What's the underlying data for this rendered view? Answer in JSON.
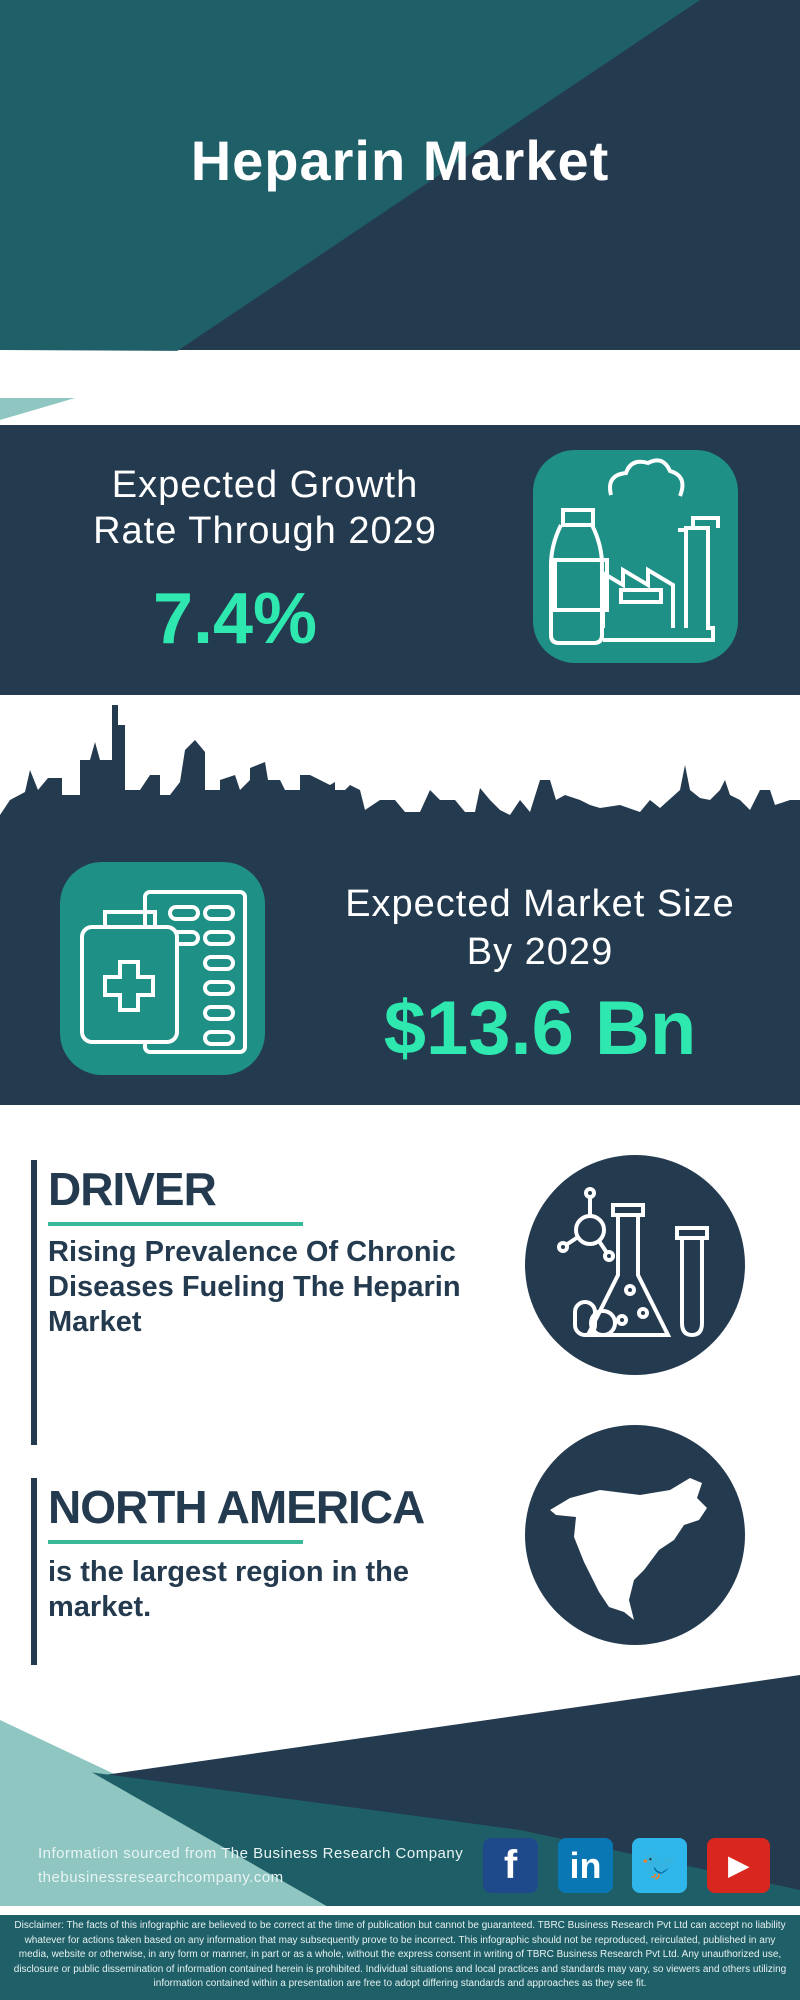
{
  "header": {
    "title": "Heparin Market"
  },
  "growth": {
    "label_line1": "Expected Growth",
    "label_line2": "Rate Through 2029",
    "value": "7.4%",
    "icon": "pharma-factory-icon"
  },
  "market_size": {
    "label_line1": "Expected Market Size",
    "label_line2": "By 2029",
    "value": "$13.6 Bn",
    "icon": "medicine-kit-pills-icon"
  },
  "driver": {
    "heading": "DRIVER",
    "text": "Rising Prevalence Of Chronic Diseases Fueling The Heparin Market",
    "icon": "lab-flask-icon"
  },
  "region": {
    "heading": "NORTH AMERICA",
    "text": "is the largest region in the market.",
    "icon": "north-america-map-icon"
  },
  "footer": {
    "source": "Information sourced from The Business Research Company",
    "website": "thebusinessresearchcompany.com",
    "social": [
      {
        "name": "facebook",
        "glyph": "f",
        "color": "#1e4a8c"
      },
      {
        "name": "linkedin",
        "glyph": "in",
        "color": "#0a77b5"
      },
      {
        "name": "twitter",
        "glyph": "🐦",
        "color": "#2fb7ec"
      },
      {
        "name": "youtube",
        "glyph": "▶",
        "color": "#d9261f"
      }
    ]
  },
  "disclaimer": "Disclaimer: The facts of this infographic are believed to be correct at the time of publication but cannot be guaranteed. TBRC Business Research Pvt Ltd can accept no liability whatever for actions taken based on any information that may subsequently prove to be incorrect. This infographic should not be reproduced, reirculated, published in any media, website or otherwise, in any form or manner, in part or as a whole, without the express consent in writing of TBRC Business Research Pvt Ltd. Any unauthorized use, disclosure or public dissemination of information contained herein is prohibited. Individual situations and local practices and standards may vary, so viewers and others utilizing information contained within a presentation are free to adopt differing standards and approaches as they see fit.",
  "colors": {
    "navy": "#243a4f",
    "teal": "#1f6068",
    "accent": "#2ee8b0",
    "icon_box": "#1e9085",
    "light_teal": "#8fc6c2"
  }
}
